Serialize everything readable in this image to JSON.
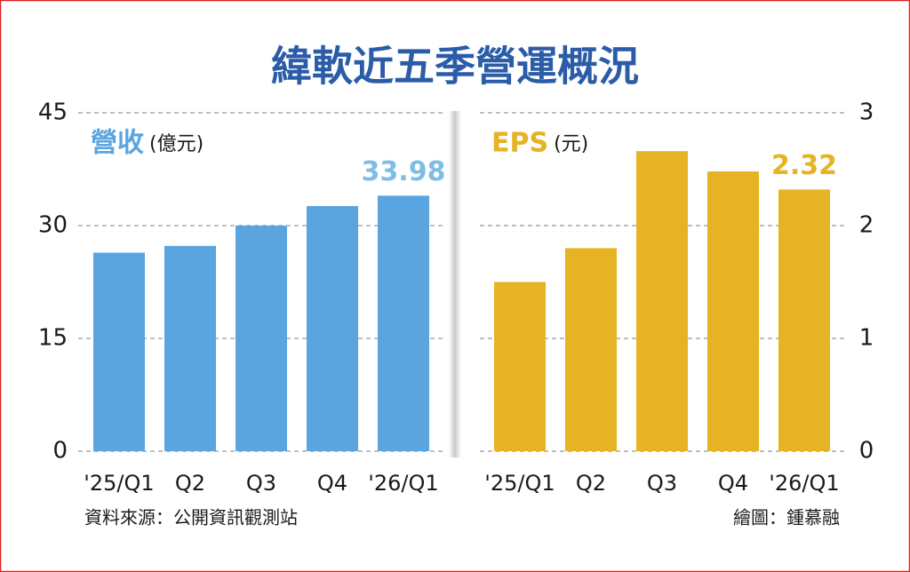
{
  "title": "緯軟近五季營運概況",
  "source": "資料來源：公開資訊觀測站",
  "credit": "繪圖：鍾慕融",
  "chart_data": [
    {
      "type": "bar",
      "label": "營收",
      "unit": "(億元)",
      "categories": [
        "'25/Q1",
        "Q2",
        "Q3",
        "Q4",
        "'26/Q1"
      ],
      "values": [
        26.4,
        27.3,
        30.0,
        32.6,
        33.98
      ],
      "value_labels": [
        null,
        null,
        null,
        null,
        "33.98"
      ],
      "color": "#5aa5e0",
      "label_color": "#7dbde6",
      "ylim": [
        0,
        45
      ],
      "yticks": [
        0,
        15,
        30,
        45
      ],
      "grid": true,
      "axis_side": "left"
    },
    {
      "type": "bar",
      "label": "EPS",
      "unit": "(元)",
      "categories": [
        "'25/Q1",
        "Q2",
        "Q3",
        "Q4",
        "'26/Q1"
      ],
      "values": [
        1.5,
        1.8,
        2.66,
        2.48,
        2.32
      ],
      "value_labels": [
        null,
        null,
        null,
        null,
        "2.32"
      ],
      "color": "#e5b323",
      "label_color": "#e5b323",
      "ylim": [
        0,
        3
      ],
      "yticks": [
        0,
        1,
        2,
        3
      ],
      "grid": true,
      "axis_side": "right"
    }
  ]
}
